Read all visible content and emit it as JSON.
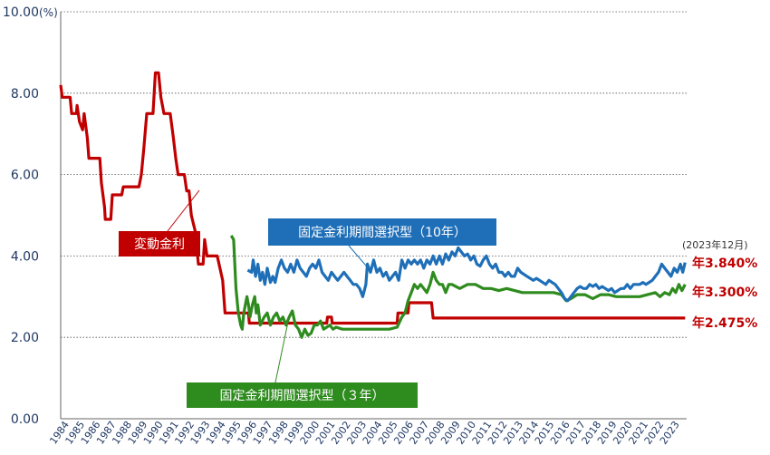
{
  "chart_data": {
    "type": "line",
    "y_unit": "(%)",
    "ylim": [
      0,
      10
    ],
    "yticks": [
      "0.00",
      "2.00",
      "4.00",
      "6.00",
      "8.00",
      "10.00"
    ],
    "x_categories": [
      "1984",
      "1985",
      "1986",
      "1987",
      "1988",
      "1989",
      "1990",
      "1991",
      "1992",
      "1993",
      "1994",
      "1995",
      "1996",
      "1997",
      "1998",
      "1999",
      "2000",
      "2001",
      "2002",
      "2003",
      "2004",
      "2005",
      "2006",
      "2007",
      "2008",
      "2009",
      "2010",
      "2011",
      "2012",
      "2013",
      "2014",
      "2015",
      "2016",
      "2017",
      "2018",
      "2019",
      "2020",
      "2021",
      "2022",
      "2023"
    ],
    "grid": "horizontal dotted",
    "date_note": "(2023年12月)",
    "series": [
      {
        "name": "変動金利",
        "color": "#c00000",
        "end_label": "年2.475%",
        "points": [
          [
            1984.0,
            8.2
          ],
          [
            1984.1,
            7.9
          ],
          [
            1984.6,
            7.9
          ],
          [
            1984.7,
            7.5
          ],
          [
            1985.0,
            7.5
          ],
          [
            1985.05,
            7.7
          ],
          [
            1985.2,
            7.3
          ],
          [
            1985.4,
            7.1
          ],
          [
            1985.5,
            7.5
          ],
          [
            1985.7,
            6.9
          ],
          [
            1985.8,
            6.4
          ],
          [
            1986.5,
            6.4
          ],
          [
            1986.6,
            5.8
          ],
          [
            1986.8,
            5.2
          ],
          [
            1986.85,
            4.9
          ],
          [
            1987.2,
            4.9
          ],
          [
            1987.3,
            5.5
          ],
          [
            1987.9,
            5.5
          ],
          [
            1988.0,
            5.7
          ],
          [
            1989.0,
            5.7
          ],
          [
            1989.15,
            6.0
          ],
          [
            1989.3,
            6.6
          ],
          [
            1989.5,
            7.5
          ],
          [
            1989.9,
            7.5
          ],
          [
            1990.05,
            8.5
          ],
          [
            1990.25,
            8.5
          ],
          [
            1990.4,
            7.9
          ],
          [
            1990.6,
            7.5
          ],
          [
            1991.0,
            7.5
          ],
          [
            1991.2,
            6.9
          ],
          [
            1991.35,
            6.4
          ],
          [
            1991.5,
            6.0
          ],
          [
            1991.9,
            6.0
          ],
          [
            1992.05,
            5.6
          ],
          [
            1992.2,
            5.6
          ],
          [
            1992.35,
            5.0
          ],
          [
            1992.6,
            4.6
          ],
          [
            1992.7,
            4.2
          ],
          [
            1992.8,
            3.8
          ],
          [
            1993.1,
            3.8
          ],
          [
            1993.2,
            4.4
          ],
          [
            1993.35,
            4.0
          ],
          [
            1994.0,
            4.0
          ],
          [
            1994.35,
            3.4
          ],
          [
            1994.5,
            2.6
          ],
          [
            1996.0,
            2.6
          ],
          [
            1996.05,
            2.35
          ],
          [
            2001.0,
            2.35
          ],
          [
            2001.05,
            2.5
          ],
          [
            2001.3,
            2.5
          ],
          [
            2001.35,
            2.35
          ],
          [
            2005.5,
            2.35
          ],
          [
            2005.55,
            2.6
          ],
          [
            2006.2,
            2.6
          ],
          [
            2006.25,
            2.85
          ],
          [
            2007.7,
            2.85
          ],
          [
            2007.8,
            2.475
          ],
          [
            2023.9,
            2.475
          ]
        ]
      },
      {
        "name": "固定金利期間選択型（10年）",
        "color": "#1f6fb8",
        "end_label": "年3.840%",
        "points": [
          [
            1995.95,
            3.65
          ],
          [
            1996.2,
            3.6
          ],
          [
            1996.3,
            3.9
          ],
          [
            1996.45,
            3.5
          ],
          [
            1996.6,
            3.8
          ],
          [
            1996.75,
            3.4
          ],
          [
            1996.9,
            3.6
          ],
          [
            1997.05,
            3.3
          ],
          [
            1997.2,
            3.7
          ],
          [
            1997.4,
            3.35
          ],
          [
            1997.55,
            3.5
          ],
          [
            1997.7,
            3.35
          ],
          [
            1997.9,
            3.7
          ],
          [
            1998.1,
            3.9
          ],
          [
            1998.3,
            3.7
          ],
          [
            1998.5,
            3.6
          ],
          [
            1998.7,
            3.8
          ],
          [
            1998.9,
            3.6
          ],
          [
            1999.1,
            3.9
          ],
          [
            1999.3,
            3.7
          ],
          [
            1999.5,
            3.6
          ],
          [
            1999.7,
            3.5
          ],
          [
            1999.9,
            3.7
          ],
          [
            2000.1,
            3.8
          ],
          [
            2000.3,
            3.7
          ],
          [
            2000.5,
            3.9
          ],
          [
            2000.7,
            3.6
          ],
          [
            2000.9,
            3.5
          ],
          [
            2001.1,
            3.4
          ],
          [
            2001.3,
            3.6
          ],
          [
            2001.5,
            3.5
          ],
          [
            2001.7,
            3.4
          ],
          [
            2001.9,
            3.5
          ],
          [
            2002.1,
            3.6
          ],
          [
            2002.3,
            3.5
          ],
          [
            2002.5,
            3.4
          ],
          [
            2002.7,
            3.3
          ],
          [
            2002.9,
            3.3
          ],
          [
            2003.1,
            3.2
          ],
          [
            2003.3,
            3.0
          ],
          [
            2003.5,
            3.3
          ],
          [
            2003.6,
            3.8
          ],
          [
            2003.8,
            3.6
          ],
          [
            2004.0,
            3.9
          ],
          [
            2004.2,
            3.6
          ],
          [
            2004.4,
            3.7
          ],
          [
            2004.6,
            3.5
          ],
          [
            2004.8,
            3.6
          ],
          [
            2005.0,
            3.4
          ],
          [
            2005.2,
            3.5
          ],
          [
            2005.4,
            3.6
          ],
          [
            2005.6,
            3.4
          ],
          [
            2005.8,
            3.9
          ],
          [
            2006.0,
            3.7
          ],
          [
            2006.2,
            3.9
          ],
          [
            2006.4,
            3.8
          ],
          [
            2006.6,
            3.9
          ],
          [
            2006.8,
            3.8
          ],
          [
            2007.0,
            3.9
          ],
          [
            2007.2,
            3.7
          ],
          [
            2007.4,
            3.9
          ],
          [
            2007.6,
            3.8
          ],
          [
            2007.8,
            4.0
          ],
          [
            2008.0,
            3.8
          ],
          [
            2008.2,
            4.0
          ],
          [
            2008.4,
            3.8
          ],
          [
            2008.6,
            4.05
          ],
          [
            2008.8,
            3.9
          ],
          [
            2009.0,
            4.1
          ],
          [
            2009.2,
            4.0
          ],
          [
            2009.4,
            4.2
          ],
          [
            2009.6,
            4.1
          ],
          [
            2009.8,
            4.0
          ],
          [
            2010.0,
            4.05
          ],
          [
            2010.2,
            3.9
          ],
          [
            2010.4,
            4.0
          ],
          [
            2010.6,
            3.8
          ],
          [
            2010.8,
            3.75
          ],
          [
            2011.0,
            3.9
          ],
          [
            2011.2,
            4.0
          ],
          [
            2011.4,
            3.8
          ],
          [
            2011.6,
            3.7
          ],
          [
            2011.8,
            3.8
          ],
          [
            2012.0,
            3.6
          ],
          [
            2012.2,
            3.6
          ],
          [
            2012.4,
            3.5
          ],
          [
            2012.6,
            3.6
          ],
          [
            2012.8,
            3.5
          ],
          [
            2013.0,
            3.5
          ],
          [
            2013.2,
            3.7
          ],
          [
            2013.4,
            3.6
          ],
          [
            2013.6,
            3.55
          ],
          [
            2013.8,
            3.5
          ],
          [
            2014.0,
            3.45
          ],
          [
            2014.2,
            3.4
          ],
          [
            2014.4,
            3.45
          ],
          [
            2014.6,
            3.4
          ],
          [
            2014.8,
            3.35
          ],
          [
            2015.0,
            3.3
          ],
          [
            2015.2,
            3.4
          ],
          [
            2015.4,
            3.35
          ],
          [
            2015.6,
            3.3
          ],
          [
            2015.8,
            3.2
          ],
          [
            2016.0,
            3.1
          ],
          [
            2016.2,
            2.95
          ],
          [
            2016.4,
            2.9
          ],
          [
            2016.6,
            3.0
          ],
          [
            2016.8,
            3.1
          ],
          [
            2017.0,
            3.2
          ],
          [
            2017.2,
            3.25
          ],
          [
            2017.4,
            3.2
          ],
          [
            2017.6,
            3.2
          ],
          [
            2017.8,
            3.3
          ],
          [
            2018.0,
            3.25
          ],
          [
            2018.2,
            3.3
          ],
          [
            2018.4,
            3.2
          ],
          [
            2018.6,
            3.25
          ],
          [
            2018.8,
            3.2
          ],
          [
            2019.0,
            3.15
          ],
          [
            2019.2,
            3.2
          ],
          [
            2019.4,
            3.1
          ],
          [
            2019.6,
            3.15
          ],
          [
            2019.8,
            3.2
          ],
          [
            2020.0,
            3.2
          ],
          [
            2020.2,
            3.3
          ],
          [
            2020.4,
            3.2
          ],
          [
            2020.6,
            3.3
          ],
          [
            2020.8,
            3.3
          ],
          [
            2021.0,
            3.3
          ],
          [
            2021.2,
            3.35
          ],
          [
            2021.4,
            3.3
          ],
          [
            2021.6,
            3.35
          ],
          [
            2021.8,
            3.4
          ],
          [
            2022.0,
            3.5
          ],
          [
            2022.2,
            3.6
          ],
          [
            2022.4,
            3.8
          ],
          [
            2022.6,
            3.7
          ],
          [
            2022.8,
            3.6
          ],
          [
            2023.0,
            3.5
          ],
          [
            2023.2,
            3.7
          ],
          [
            2023.4,
            3.6
          ],
          [
            2023.6,
            3.8
          ],
          [
            2023.75,
            3.6
          ],
          [
            2023.9,
            3.84
          ]
        ]
      },
      {
        "name": "固定金利期間選択型（３年）",
        "color": "#2e8b1e",
        "end_label": "年3.300%",
        "points": [
          [
            1994.9,
            4.5
          ],
          [
            1995.05,
            4.4
          ],
          [
            1995.2,
            3.2
          ],
          [
            1995.35,
            2.6
          ],
          [
            1995.5,
            2.3
          ],
          [
            1995.6,
            2.2
          ],
          [
            1995.7,
            2.6
          ],
          [
            1995.9,
            3.0
          ],
          [
            1996.0,
            2.8
          ],
          [
            1996.1,
            2.5
          ],
          [
            1996.25,
            2.8
          ],
          [
            1996.4,
            3.0
          ],
          [
            1996.5,
            2.6
          ],
          [
            1996.6,
            2.8
          ],
          [
            1996.75,
            2.3
          ],
          [
            1997.0,
            2.5
          ],
          [
            1997.2,
            2.6
          ],
          [
            1997.4,
            2.3
          ],
          [
            1997.6,
            2.5
          ],
          [
            1997.8,
            2.6
          ],
          [
            1998.0,
            2.4
          ],
          [
            1998.2,
            2.5
          ],
          [
            1998.4,
            2.3
          ],
          [
            1998.6,
            2.5
          ],
          [
            1998.8,
            2.65
          ],
          [
            1999.0,
            2.3
          ],
          [
            1999.2,
            2.2
          ],
          [
            1999.4,
            2.0
          ],
          [
            1999.6,
            2.2
          ],
          [
            1999.8,
            2.05
          ],
          [
            2000.0,
            2.1
          ],
          [
            2000.2,
            2.3
          ],
          [
            2000.4,
            2.3
          ],
          [
            2000.6,
            2.4
          ],
          [
            2000.8,
            2.2
          ],
          [
            2001.0,
            2.25
          ],
          [
            2001.2,
            2.3
          ],
          [
            2001.4,
            2.2
          ],
          [
            2001.6,
            2.25
          ],
          [
            2002.0,
            2.2
          ],
          [
            2003.0,
            2.2
          ],
          [
            2004.0,
            2.2
          ],
          [
            2005.0,
            2.2
          ],
          [
            2005.5,
            2.25
          ],
          [
            2005.8,
            2.5
          ],
          [
            2006.0,
            2.6
          ],
          [
            2006.2,
            2.9
          ],
          [
            2006.4,
            3.1
          ],
          [
            2006.6,
            3.3
          ],
          [
            2006.8,
            3.2
          ],
          [
            2007.0,
            3.3
          ],
          [
            2007.2,
            3.2
          ],
          [
            2007.4,
            3.1
          ],
          [
            2007.6,
            3.3
          ],
          [
            2007.8,
            3.6
          ],
          [
            2008.0,
            3.4
          ],
          [
            2008.2,
            3.3
          ],
          [
            2008.4,
            3.3
          ],
          [
            2008.6,
            3.1
          ],
          [
            2008.8,
            3.3
          ],
          [
            2009.0,
            3.3
          ],
          [
            2009.5,
            3.2
          ],
          [
            2010.0,
            3.3
          ],
          [
            2010.5,
            3.3
          ],
          [
            2011.0,
            3.2
          ],
          [
            2011.5,
            3.2
          ],
          [
            2012.0,
            3.15
          ],
          [
            2012.5,
            3.2
          ],
          [
            2013.0,
            3.15
          ],
          [
            2013.5,
            3.1
          ],
          [
            2014.0,
            3.1
          ],
          [
            2014.5,
            3.1
          ],
          [
            2015.0,
            3.1
          ],
          [
            2015.5,
            3.1
          ],
          [
            2016.0,
            3.05
          ],
          [
            2016.3,
            2.9
          ],
          [
            2016.6,
            2.95
          ],
          [
            2017.0,
            3.05
          ],
          [
            2017.5,
            3.05
          ],
          [
            2018.0,
            2.95
          ],
          [
            2018.5,
            3.05
          ],
          [
            2019.0,
            3.05
          ],
          [
            2019.5,
            3.0
          ],
          [
            2020.0,
            3.0
          ],
          [
            2020.5,
            3.0
          ],
          [
            2021.0,
            3.0
          ],
          [
            2021.5,
            3.05
          ],
          [
            2022.0,
            3.1
          ],
          [
            2022.3,
            3.0
          ],
          [
            2022.6,
            3.1
          ],
          [
            2022.9,
            3.05
          ],
          [
            2023.1,
            3.2
          ],
          [
            2023.3,
            3.1
          ],
          [
            2023.5,
            3.3
          ],
          [
            2023.7,
            3.15
          ],
          [
            2023.9,
            3.3
          ]
        ]
      }
    ]
  }
}
